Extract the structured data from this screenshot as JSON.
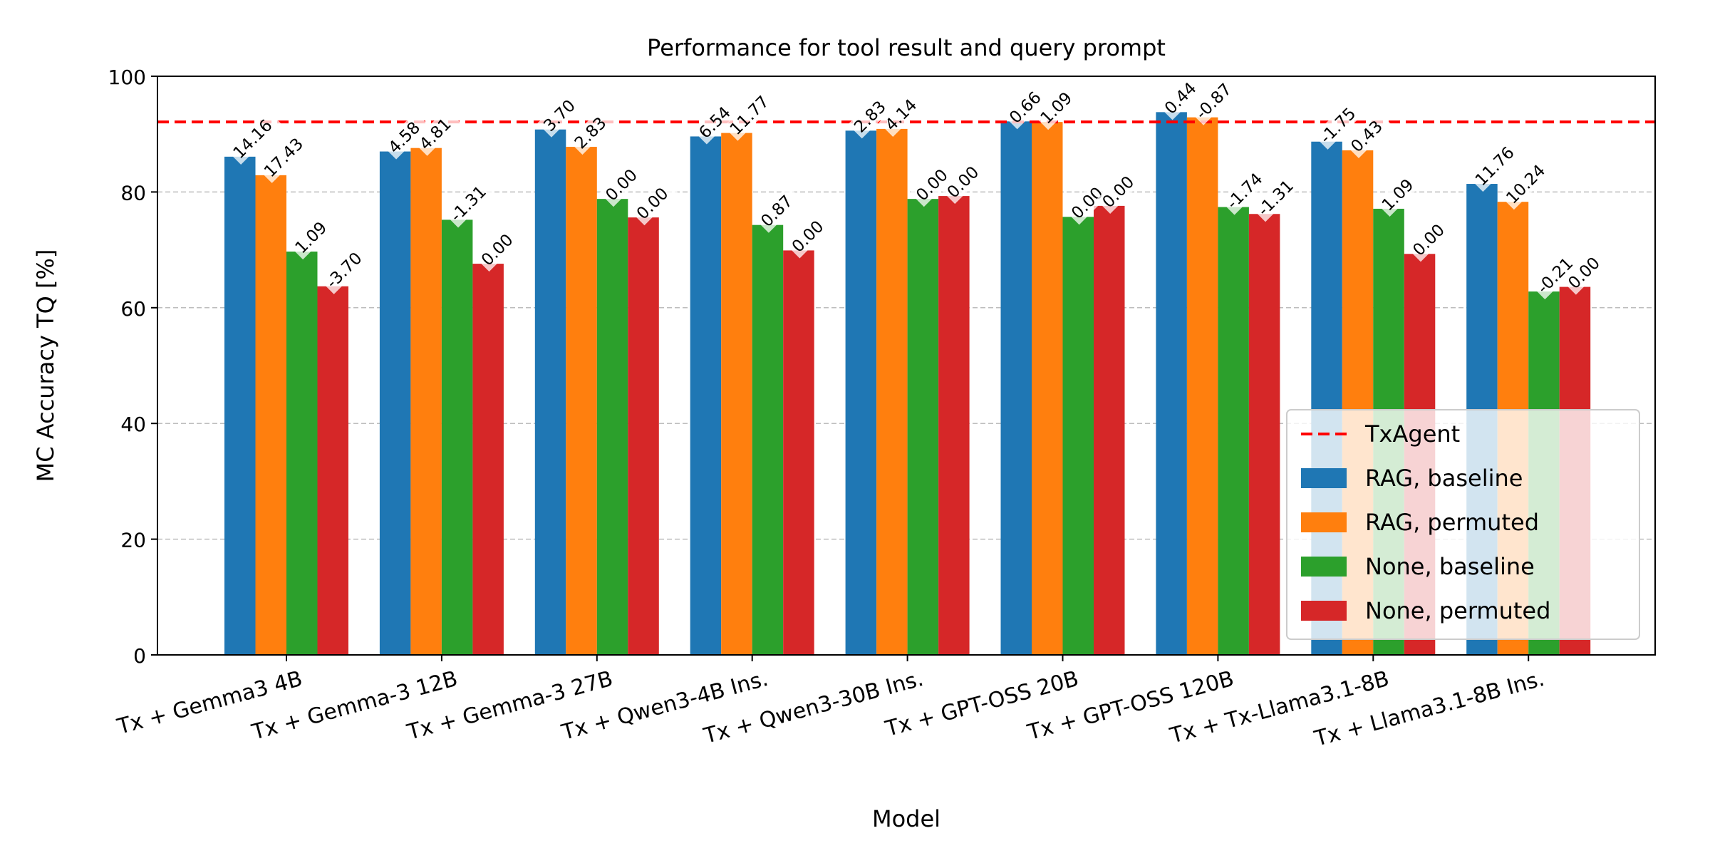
{
  "chart_data": {
    "type": "bar",
    "title": "Performance for tool result and query prompt",
    "xlabel": "Model",
    "ylabel": "MC Accuracy TQ [%]",
    "ylim": [
      0,
      100
    ],
    "yticks": [
      "0",
      "20",
      "40",
      "60",
      "80",
      "100"
    ],
    "grid": "y-dashed",
    "categories": [
      "Tx + Gemma3 4B",
      "Tx + Gemma-3 12B",
      "Tx + Gemma-3 27B",
      "Tx + Qwen3-4B Ins.",
      "Tx + Qwen3-30B Ins.",
      "Tx + GPT-OSS 20B",
      "Tx + GPT-OSS 120B",
      "Tx + Tx-Llama3.1-8B",
      "Tx + Llama3.1-8B Ins."
    ],
    "reference_line": {
      "name": "TxAgent",
      "value": 92.1,
      "color": "#ff0000"
    },
    "series": [
      {
        "name": "RAG, baseline",
        "color": "#1f77b4",
        "values": [
          86.1,
          87.0,
          90.8,
          89.6,
          90.6,
          92.2,
          93.8,
          88.7,
          81.4
        ],
        "labels": [
          "14.16",
          "4.58",
          "3.70",
          "6.54",
          "2.83",
          "0.66",
          "0.44",
          "-1.75",
          "11.76"
        ]
      },
      {
        "name": "RAG, permuted",
        "color": "#ff7f0e",
        "values": [
          82.9,
          87.6,
          87.8,
          90.2,
          90.9,
          92.1,
          92.9,
          87.2,
          78.3
        ],
        "labels": [
          "17.43",
          "4.81",
          "2.83",
          "11.77",
          "4.14",
          "1.09",
          "-0.87",
          "0.43",
          "10.24"
        ]
      },
      {
        "name": "None, baseline",
        "color": "#2ca02c",
        "values": [
          69.7,
          75.2,
          78.8,
          74.3,
          78.8,
          75.7,
          77.4,
          77.1,
          62.8
        ],
        "labels": [
          "1.09",
          "-1.31",
          "0.00",
          "0.87",
          "0.00",
          "0.00",
          "-1.74",
          "1.09",
          "-0.21"
        ]
      },
      {
        "name": "None, permuted",
        "color": "#d62728",
        "values": [
          63.7,
          67.6,
          75.6,
          69.9,
          79.3,
          77.6,
          76.2,
          69.3,
          63.6
        ],
        "labels": [
          "-3.70",
          "0.00",
          "0.00",
          "0.00",
          "0.00",
          "0.00",
          "-1.31",
          "0.00",
          "0.00"
        ]
      }
    ],
    "legend": {
      "position": "lower-right"
    }
  }
}
